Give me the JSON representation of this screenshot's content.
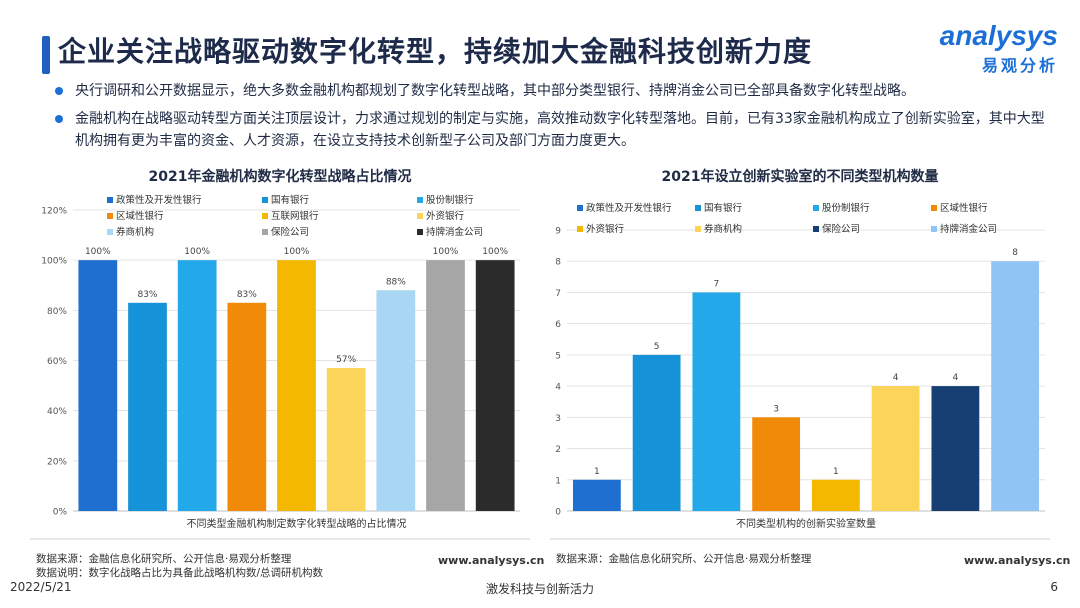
{
  "header": {
    "title": "企业关注战略驱动数字化转型，持续加大金融科技创新力度",
    "logo_en": "analysys",
    "logo_cn": "易观分析"
  },
  "bullets": [
    "央行调研和公开数据显示，绝大多数金融机构都规划了数字化转型战略，其中部分类型银行、持牌消金公司已全部具备数字化转型战略。",
    "金融机构在战略驱动转型方面关注顶层设计，力求通过规划的制定与实施，高效推动数字化转型落地。目前，已有33家金融机构成立了创新实验室，其中大型机构拥有更为丰富的资金、人才资源，在设立支持技术创新型子公司及部门方面力度更大。"
  ],
  "left_source": {
    "line1": "数据来源：金融信息化研究所、公开信息·易观分析整理",
    "line2": "数据说明：数字化战略占比为具备此战略机构数/总调研机构数",
    "site": "www.analysys.cn"
  },
  "right_source": {
    "line1": "数据来源：金融信息化研究所、公开信息·易观分析整理",
    "site": "www.analysys.cn"
  },
  "footer": {
    "date": "2022/5/21",
    "center": "激发科技与创新活力",
    "page": "6"
  },
  "chart_data": [
    {
      "type": "bar",
      "title": "2021年金融机构数字化转型战略占比情况",
      "xlabel": "不同类型金融机构制定数字化转型战略的占比情况",
      "ylabel": "",
      "ylim": [
        0,
        120
      ],
      "yticks": [
        "0%",
        "20%",
        "40%",
        "60%",
        "80%",
        "100%",
        "120%"
      ],
      "tick_values": [
        0,
        20,
        40,
        60,
        80,
        100,
        120
      ],
      "legend_position": "top",
      "categories": [
        "政策性及开发性银行",
        "国有银行",
        "股份制银行",
        "区域性银行",
        "互联网银行",
        "外资银行",
        "券商机构",
        "保险公司",
        "持牌消金公司"
      ],
      "values": [
        100,
        83,
        100,
        83,
        100,
        57,
        88,
        100,
        100
      ],
      "labels": [
        "100%",
        "83%",
        "100%",
        "83%",
        "100%",
        "57%",
        "88%",
        "100%",
        "100%"
      ],
      "colors": [
        "#1e6fcf",
        "#1592d8",
        "#23a8ea",
        "#f28a09",
        "#f5b800",
        "#fdd45a",
        "#a8d6f3",
        "#a6a6a6",
        "#2b2b2b"
      ]
    },
    {
      "type": "bar",
      "title": "2021年设立创新实验室的不同类型机构数量",
      "xlabel": "不同类型机构的创新实验室数量",
      "ylabel": "",
      "ylim": [
        0,
        9
      ],
      "yticks": [
        "0",
        "1",
        "2",
        "3",
        "4",
        "5",
        "6",
        "7",
        "8",
        "9"
      ],
      "tick_values": [
        0,
        1,
        2,
        3,
        4,
        5,
        6,
        7,
        8,
        9
      ],
      "legend_position": "top",
      "categories": [
        "政策性及开发性银行",
        "国有银行",
        "股份制银行",
        "区域性银行",
        "外资银行",
        "券商机构",
        "保险公司",
        "持牌消金公司"
      ],
      "values": [
        1,
        5,
        7,
        3,
        1,
        4,
        4,
        8
      ],
      "labels": [
        "1",
        "5",
        "7",
        "3",
        "1",
        "4",
        "4",
        "8"
      ],
      "colors": [
        "#1e6fcf",
        "#1592d8",
        "#23a8ea",
        "#f28a09",
        "#f5b800",
        "#fdd45a",
        "#173f73",
        "#8fc4f5"
      ]
    }
  ]
}
